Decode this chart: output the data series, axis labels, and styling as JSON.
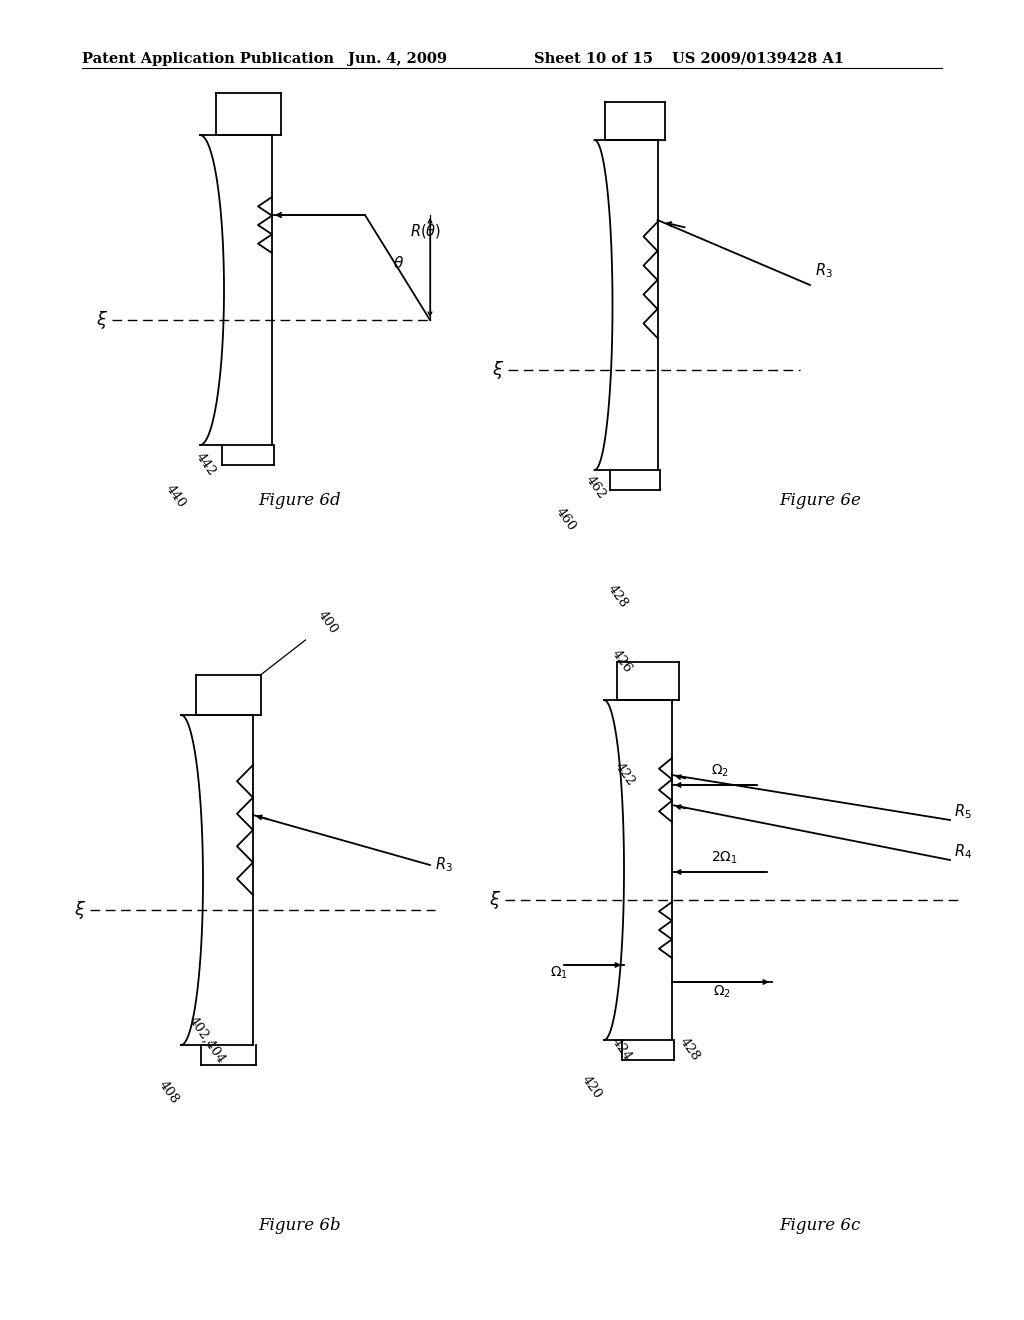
{
  "header_left": "Patent Application Publication",
  "header_mid": "Jun. 4, 2009",
  "header_right1": "Sheet 10 of 15",
  "header_right2": "US 2009/0139428 A1",
  "bg_color": "#ffffff"
}
